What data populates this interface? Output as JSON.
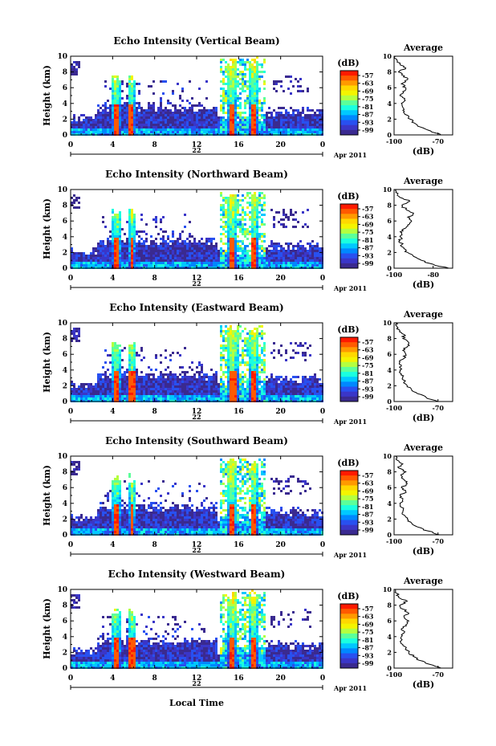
{
  "colorbar": {
    "unit": "(dB)",
    "ticks": [
      "-57",
      "-63",
      "-69",
      "-75",
      "-81",
      "-87",
      "-93",
      "-99"
    ],
    "colors": [
      "#ff1a00",
      "#ff5a00",
      "#ff9a00",
      "#ffd800",
      "#f4f400",
      "#b4ff40",
      "#5cff9a",
      "#1affe0",
      "#00c8ff",
      "#0088ff",
      "#2850f0",
      "#3a36c8",
      "#3a2a90"
    ]
  },
  "x_axis": {
    "ticks": [
      "0",
      "4",
      "8",
      "12",
      "16",
      "20",
      "0"
    ],
    "date_label": "22",
    "month_label": "Apr 2011",
    "xlabel": "Local Time"
  },
  "y_axis": {
    "ticks": [
      "0",
      "2",
      "4",
      "6",
      "8",
      "10"
    ],
    "ylabel": "Height (km)"
  },
  "avg_title": "Average",
  "avg_xlabel": "(dB)",
  "chart_data": [
    {
      "type": "heatmap",
      "title": "Echo Intensity (Vertical Beam)",
      "xlim": [
        0,
        24
      ],
      "ylim": [
        0,
        10
      ],
      "rain_bands": [
        [
          3.8,
          4.8
        ],
        [
          5.4,
          6.2
        ],
        [
          14.8,
          15.9
        ],
        [
          17.0,
          17.9
        ]
      ],
      "avg_profile": {
        "type": "line",
        "title": "Average",
        "xticks": [
          "-100",
          "-70"
        ],
        "xlim": [
          -100,
          -60
        ],
        "height_km": [
          0,
          0.5,
          1,
          1.5,
          2,
          2.5,
          3,
          3.5,
          4,
          4.5,
          5,
          5.5,
          6,
          6.5,
          7,
          7.5,
          8,
          8.5,
          9,
          9.5,
          10
        ],
        "db": [
          -68,
          -75,
          -82,
          -86,
          -89,
          -91,
          -93,
          -94,
          -95,
          -93,
          -96,
          -94,
          -92,
          -95,
          -91,
          -93,
          -97,
          -92,
          -96,
          -98,
          -99
        ]
      }
    },
    {
      "type": "heatmap",
      "title": "Echo Intensity (Northward Beam)",
      "xlim": [
        0,
        24
      ],
      "ylim": [
        0,
        10
      ],
      "rain_bands": [
        [
          3.9,
          4.9
        ],
        [
          5.5,
          6.2
        ],
        [
          14.9,
          15.8
        ],
        [
          17.1,
          17.8
        ]
      ],
      "avg_profile": {
        "type": "line",
        "title": "Average",
        "xticks": [
          "-100",
          "-80"
        ],
        "xlim": [
          -100,
          -70
        ],
        "height_km": [
          0,
          0.5,
          1,
          1.5,
          2,
          2.5,
          3,
          3.5,
          4,
          4.5,
          5,
          5.5,
          6,
          6.5,
          7,
          7.5,
          8,
          8.5,
          9,
          9.5,
          10
        ],
        "db": [
          -72,
          -80,
          -86,
          -90,
          -93,
          -95,
          -96,
          -97,
          -97,
          -96,
          -95,
          -93,
          -91,
          -93,
          -90,
          -94,
          -96,
          -92,
          -97,
          -98,
          -99
        ]
      }
    },
    {
      "type": "heatmap",
      "title": "Echo Intensity (Eastward Beam)",
      "xlim": [
        0,
        24
      ],
      "ylim": [
        0,
        10
      ],
      "rain_bands": [
        [
          3.8,
          4.9
        ],
        [
          5.4,
          6.3
        ],
        [
          14.8,
          16.0
        ],
        [
          17.0,
          17.9
        ]
      ],
      "avg_profile": {
        "type": "line",
        "title": "Average",
        "xticks": [
          "-100",
          "-70"
        ],
        "xlim": [
          -100,
          -60
        ],
        "height_km": [
          0,
          0.5,
          1,
          1.5,
          2,
          2.5,
          3,
          3.5,
          4,
          4.5,
          5,
          5.5,
          6,
          6.5,
          7,
          7.5,
          8,
          8.5,
          9,
          9.5,
          10
        ],
        "db": [
          -70,
          -78,
          -84,
          -88,
          -91,
          -93,
          -94,
          -95,
          -96,
          -95,
          -96,
          -93,
          -92,
          -94,
          -91,
          -90,
          -94,
          -93,
          -96,
          -98,
          -99
        ]
      }
    },
    {
      "type": "heatmap",
      "title": "Echo Intensity (Southward Beam)",
      "xlim": [
        0,
        24
      ],
      "ylim": [
        0,
        10
      ],
      "rain_bands": [
        [
          3.9,
          4.8
        ],
        [
          5.5,
          6.2
        ],
        [
          14.8,
          15.9
        ],
        [
          17.1,
          17.8
        ]
      ],
      "avg_profile": {
        "type": "line",
        "title": "Average",
        "xticks": [
          "-100",
          "-70"
        ],
        "xlim": [
          -100,
          -60
        ],
        "height_km": [
          0,
          0.5,
          1,
          1.5,
          2,
          2.5,
          3,
          3.5,
          4,
          4.5,
          5,
          5.5,
          6,
          6.5,
          7,
          7.5,
          8,
          8.5,
          9,
          9.5,
          10
        ],
        "db": [
          -69,
          -77,
          -84,
          -88,
          -91,
          -93,
          -94,
          -95,
          -96,
          -94,
          -96,
          -92,
          -95,
          -91,
          -93,
          -95,
          -92,
          -97,
          -94,
          -98,
          -99
        ]
      }
    },
    {
      "type": "heatmap",
      "title": "Echo Intensity (Westward Beam)",
      "xlim": [
        0,
        24
      ],
      "ylim": [
        0,
        10
      ],
      "rain_bands": [
        [
          3.8,
          4.8
        ],
        [
          5.4,
          6.3
        ],
        [
          14.9,
          15.9
        ],
        [
          17.0,
          17.8
        ]
      ],
      "avg_profile": {
        "type": "line",
        "title": "Average",
        "xticks": [
          "-100",
          "-70"
        ],
        "xlim": [
          -100,
          -60
        ],
        "height_km": [
          0,
          0.5,
          1,
          1.5,
          2,
          2.5,
          3,
          3.5,
          4,
          4.5,
          5,
          5.5,
          6,
          6.5,
          7,
          7.5,
          8,
          8.5,
          9,
          9.5,
          10
        ],
        "db": [
          -68,
          -76,
          -83,
          -87,
          -90,
          -92,
          -94,
          -95,
          -95,
          -93,
          -95,
          -92,
          -90,
          -93,
          -90,
          -94,
          -96,
          -91,
          -97,
          -98,
          -99
        ]
      }
    }
  ]
}
